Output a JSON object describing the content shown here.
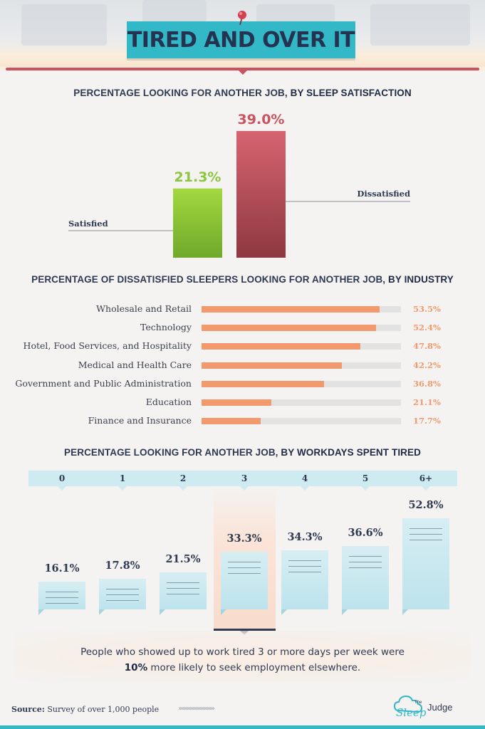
{
  "header": {
    "title": "TIRED AND OVER IT"
  },
  "chart_data": [
    {
      "type": "bar",
      "title_prefix": "PERCENTAGE LOOKING FOR ANOTHER JOB,",
      "title_emphasis": "BY SLEEP SATISFACTION",
      "unit": "%",
      "categories": [
        "Satisfied",
        "Dissatisfied"
      ],
      "values": [
        21.3,
        39.0
      ],
      "data_labels": [
        "21.3%",
        "39.0%"
      ],
      "colors": [
        "#8cc63f",
        "#c9545f"
      ],
      "ylim": [
        0,
        39.0
      ]
    },
    {
      "type": "bar",
      "orientation": "horizontal",
      "title_prefix": "PERCENTAGE OF DISSATISFIED SLEEPERS LOOKING FOR ANOTHER JOB,",
      "title_emphasis": "BY INDUSTRY",
      "unit": "%",
      "categories": [
        "Wholesale and Retail",
        "Technology",
        "Hotel, Food Services, and Hospitality",
        "Medical and Health Care",
        "Government and Public Administration",
        "Education",
        "Finance and Insurance"
      ],
      "values": [
        53.5,
        52.4,
        47.8,
        42.2,
        36.8,
        21.1,
        17.7
      ],
      "data_labels": [
        "53.5%",
        "52.4%",
        "47.8%",
        "42.2%",
        "36.8%",
        "21.1%",
        "17.7%"
      ],
      "bar_color": "#f29a6d",
      "xlim": [
        0,
        60
      ]
    },
    {
      "type": "bar",
      "title_prefix": "PERCENTAGE LOOKING FOR ANOTHER JOB,",
      "title_emphasis": "BY WORKDAYS SPENT TIRED",
      "unit": "%",
      "categories": [
        "0",
        "1",
        "2",
        "3",
        "4",
        "5",
        "6+"
      ],
      "values": [
        16.1,
        17.8,
        21.5,
        33.3,
        34.3,
        36.6,
        52.8
      ],
      "data_labels": [
        "16.1%",
        "17.8%",
        "21.5%",
        "33.3%",
        "34.3%",
        "36.6%",
        "52.8%"
      ],
      "highlighted_category": "3",
      "bar_color": "#c6e6ee"
    }
  ],
  "callout": {
    "line1": "People who showed up to work tired 3 or more days per week were",
    "line2_bold": "10%",
    "line2_rest": " more likely to seek employment elsewhere."
  },
  "footer": {
    "source_label": "Source:",
    "source_text": " Survey of over 1,000 people",
    "chevrons": "›››››››››››››››››››››››››",
    "logo_text": "Judge",
    "logo_small": "The",
    "logo_script": "Sleep"
  }
}
